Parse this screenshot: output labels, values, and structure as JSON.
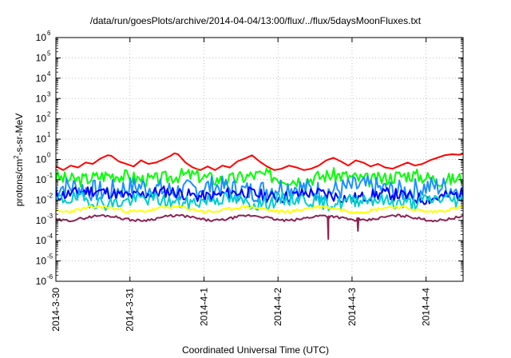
{
  "chart_data": {
    "type": "line",
    "title": "/data/run/goesPlots/archive/2014-04-04/13:00/flux/../flux/5daysMoonFluxes.txt",
    "xlabel": "Coordinated Universal Time (UTC)",
    "ylabel": {
      "pre": "protons/cm",
      "sup": "2",
      "post": "-s-sr-MeV"
    },
    "yscale": "log",
    "ylim": [
      1e-06,
      1000000.0
    ],
    "xlim": [
      0,
      5.5
    ],
    "grid": true,
    "x_ticks": [
      {
        "x": 0,
        "label": "2014-3-30"
      },
      {
        "x": 1,
        "label": "2014-3-31"
      },
      {
        "x": 2,
        "label": "2014-4-1"
      },
      {
        "x": 3,
        "label": "2014-4-2"
      },
      {
        "x": 4,
        "label": "2014-4-3"
      },
      {
        "x": 5,
        "label": "2014-4-4"
      }
    ],
    "y_ticks": [
      {
        "exp": -6,
        "label": "10",
        "sup": "-6"
      },
      {
        "exp": -5,
        "label": "10",
        "sup": "-5"
      },
      {
        "exp": -4,
        "label": "10",
        "sup": "-4"
      },
      {
        "exp": -3,
        "label": "10",
        "sup": "-3"
      },
      {
        "exp": -2,
        "label": "10",
        "sup": "-2"
      },
      {
        "exp": -1,
        "label": "10",
        "sup": "-1"
      },
      {
        "exp": 0,
        "label": "10",
        "sup": "0"
      },
      {
        "exp": 1,
        "label": "10",
        "sup": "1"
      },
      {
        "exp": 2,
        "label": "10",
        "sup": "2"
      },
      {
        "exp": 3,
        "label": "10",
        "sup": "3"
      },
      {
        "exp": 4,
        "label": "10",
        "sup": "4"
      },
      {
        "exp": 5,
        "label": "10",
        "sup": "5"
      },
      {
        "exp": 6,
        "label": "10",
        "sup": "6"
      }
    ],
    "series": [
      {
        "color": "#ff0000",
        "x": [
          0,
          0.1,
          0.2,
          0.3,
          0.4,
          0.5,
          0.6,
          0.7,
          0.75,
          0.85,
          0.95,
          1.05,
          1.15,
          1.25,
          1.35,
          1.45,
          1.55,
          1.6,
          1.65,
          1.75,
          1.85,
          1.95,
          2.05,
          2.15,
          2.25,
          2.35,
          2.45,
          2.55,
          2.65,
          2.75,
          2.85,
          2.95,
          3.05,
          3.15,
          3.25,
          3.35,
          3.45,
          3.55,
          3.65,
          3.75,
          3.85,
          3.95,
          4.05,
          4.15,
          4.25,
          4.35,
          4.45,
          4.55,
          4.65,
          4.75,
          4.85,
          4.95,
          5.05,
          5.15,
          5.25,
          5.35,
          5.45,
          5.5
        ],
        "y": [
          0.45,
          0.3,
          0.5,
          0.4,
          0.7,
          0.6,
          1.1,
          1.6,
          1.5,
          0.8,
          0.6,
          0.45,
          0.9,
          0.6,
          0.7,
          1.0,
          1.5,
          2.0,
          1.8,
          0.7,
          0.4,
          0.3,
          0.45,
          0.3,
          0.5,
          0.4,
          0.8,
          1.1,
          1.6,
          0.8,
          0.45,
          0.3,
          0.35,
          0.5,
          0.4,
          0.3,
          0.35,
          0.5,
          0.9,
          1.2,
          0.8,
          0.5,
          0.9,
          0.7,
          0.45,
          0.6,
          0.4,
          0.35,
          0.5,
          0.7,
          0.5,
          0.6,
          0.9,
          1.2,
          1.6,
          1.8,
          1.7,
          1.9
        ]
      },
      {
        "color": "#00ff00",
        "mean": 0.13,
        "spread": 0.35,
        "trend": 0.0,
        "seed": 3
      },
      {
        "color": "#1e90ff",
        "mean": 0.035,
        "spread": 0.55,
        "trend": 0.0,
        "seed": 7
      },
      {
        "color": "#0000ff",
        "mean": 0.018,
        "spread": 0.3,
        "trend": -0.1,
        "seed": 11
      },
      {
        "color": "#00cdcd",
        "mean": 0.009,
        "spread": 0.35,
        "trend": 0.0,
        "seed": 19
      },
      {
        "color": "#ffff00",
        "mean": 0.0035,
        "spread": 0.08,
        "trend": 0.0,
        "seed": 23
      },
      {
        "color": "#8b2252",
        "mean": 0.0013,
        "spread": 0.06,
        "trend": 0.0,
        "seed": 29,
        "dips": [
          {
            "x": 3.68,
            "y": 0.00012
          },
          {
            "x": 4.08,
            "y": 0.0003
          }
        ]
      }
    ]
  }
}
